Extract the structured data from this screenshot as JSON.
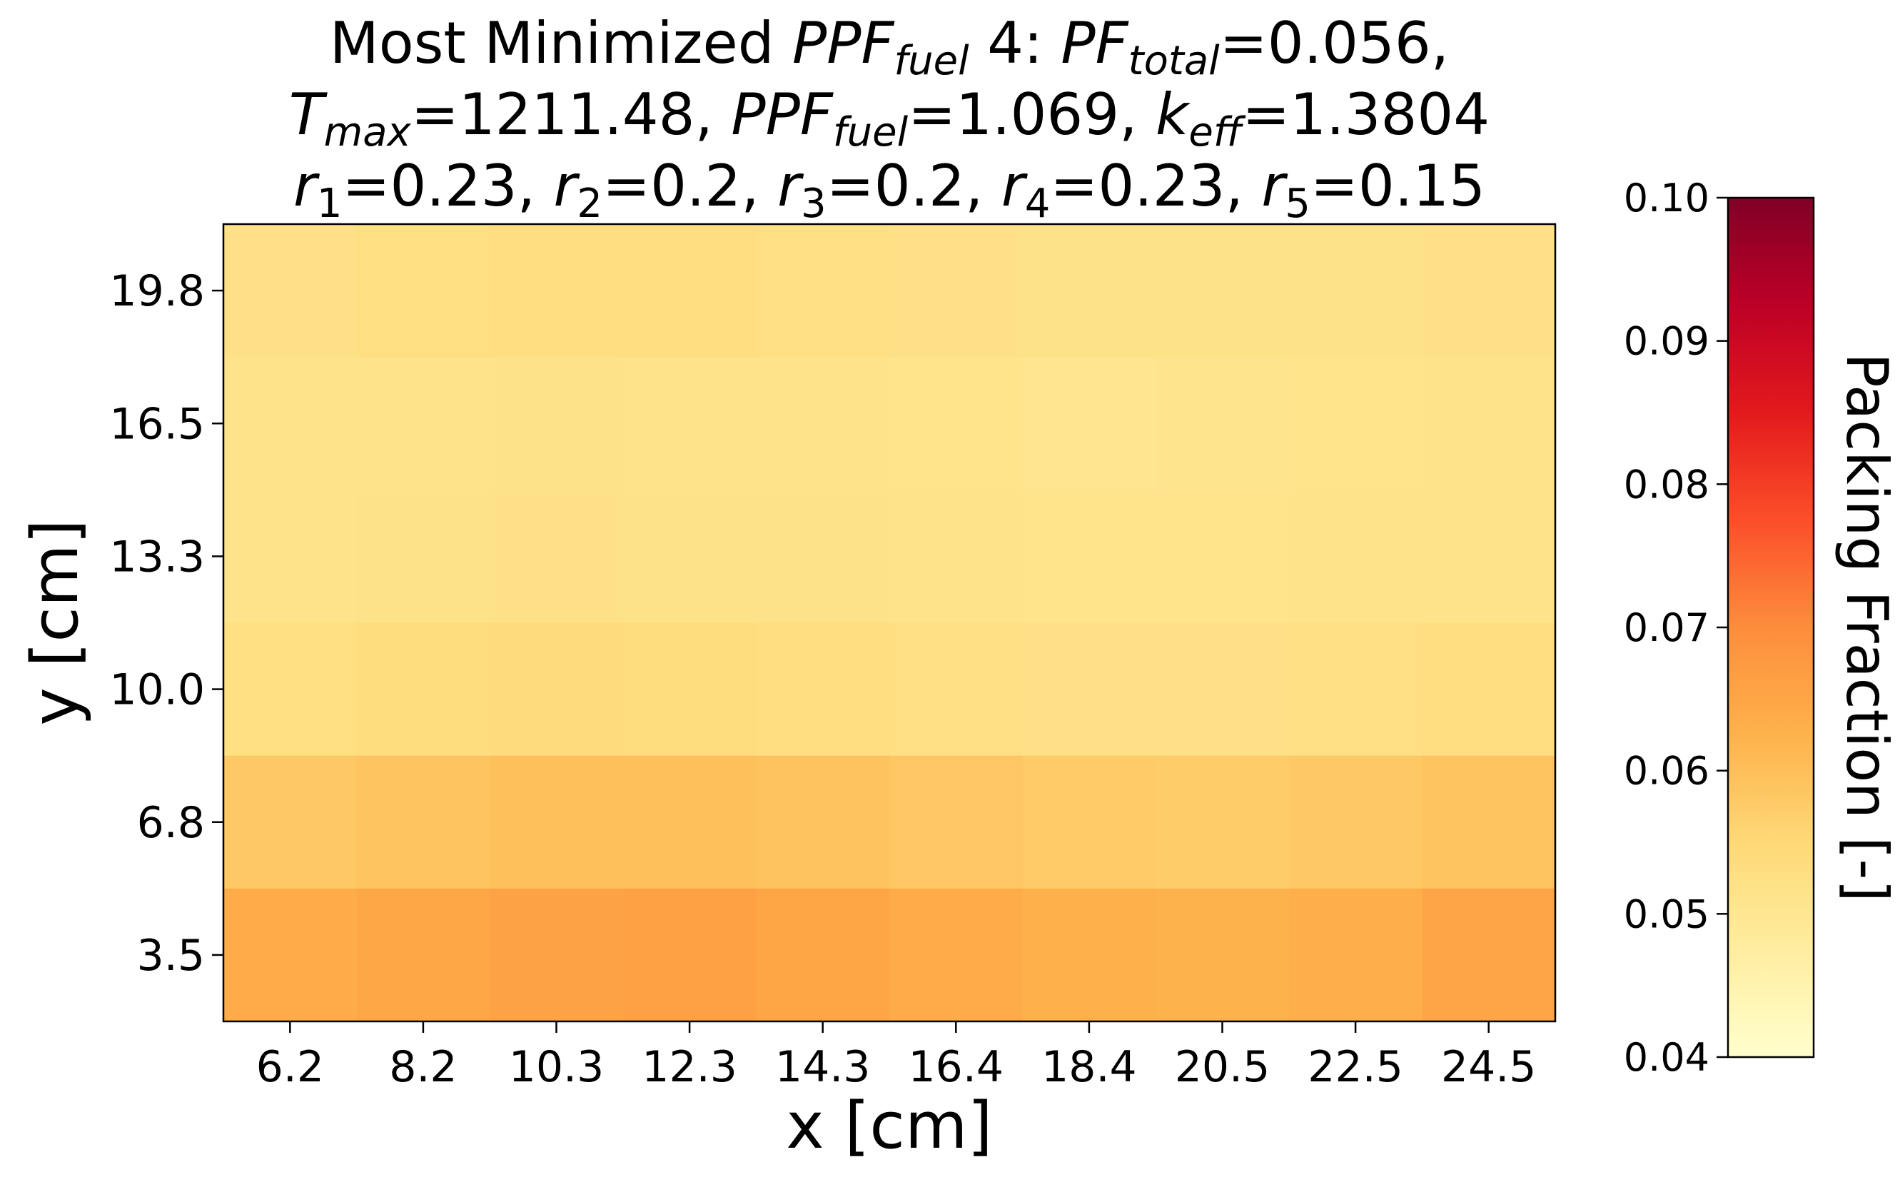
{
  "chart_data": {
    "type": "heatmap",
    "title_lines": [
      [
        {
          "t": "Most Minimized "
        },
        {
          "t": "PPF",
          "style": "italic"
        },
        {
          "t": "fuel",
          "style": "italic",
          "sub": true
        },
        {
          "t": " 4: "
        },
        {
          "t": "PF",
          "style": "italic"
        },
        {
          "t": "total",
          "style": "italic",
          "sub": true
        },
        {
          "t": "=0.056,"
        }
      ],
      [
        {
          "t": "T",
          "style": "italic"
        },
        {
          "t": "max",
          "style": "italic",
          "sub": true
        },
        {
          "t": "=1211.48, "
        },
        {
          "t": "PPF",
          "style": "italic"
        },
        {
          "t": "fuel",
          "style": "italic",
          "sub": true
        },
        {
          "t": "=1.069, "
        },
        {
          "t": "k",
          "style": "italic"
        },
        {
          "t": "eff",
          "style": "italic",
          "sub": true
        },
        {
          "t": "=1.3804"
        }
      ],
      [
        {
          "t": "r",
          "style": "italic"
        },
        {
          "t": "1",
          "sub": true
        },
        {
          "t": "=0.23, "
        },
        {
          "t": "r",
          "style": "italic"
        },
        {
          "t": "2",
          "sub": true
        },
        {
          "t": "=0.2, "
        },
        {
          "t": "r",
          "style": "italic"
        },
        {
          "t": "3",
          "sub": true
        },
        {
          "t": "=0.2, "
        },
        {
          "t": "r",
          "style": "italic"
        },
        {
          "t": "4",
          "sub": true
        },
        {
          "t": "=0.23, "
        },
        {
          "t": "r",
          "style": "italic"
        },
        {
          "t": "5",
          "sub": true
        },
        {
          "t": "=0.15"
        }
      ]
    ],
    "xlabel": "x [cm]",
    "ylabel": "y [cm]",
    "x_ticks": [
      "6.2",
      "8.2",
      "10.3",
      "12.3",
      "14.3",
      "16.4",
      "18.4",
      "20.5",
      "22.5",
      "24.5"
    ],
    "y_ticks": [
      "19.8",
      "16.5",
      "13.3",
      "10.0",
      "6.8",
      "3.5"
    ],
    "colorbar": {
      "label": "Packing Fraction [-]",
      "min": 0.04,
      "max": 0.1,
      "ticks": [
        "0.10",
        "0.09",
        "0.08",
        "0.07",
        "0.06",
        "0.05",
        "0.04"
      ],
      "colormap": "YlOrRd",
      "colors": [
        "#ffffcc",
        "#ffeda0",
        "#fed976",
        "#feb24c",
        "#fd8d3c",
        "#fc4e2a",
        "#e31a1c",
        "#bd0026",
        "#800026"
      ]
    },
    "values": [
      [
        0.052,
        0.0528,
        0.0532,
        0.053,
        0.0526,
        0.0522,
        0.0518,
        0.0518,
        0.0518,
        0.052
      ],
      [
        0.0512,
        0.0514,
        0.0516,
        0.0514,
        0.0512,
        0.051,
        0.0506,
        0.0508,
        0.051,
        0.0512
      ],
      [
        0.0512,
        0.0518,
        0.052,
        0.0518,
        0.0516,
        0.0512,
        0.051,
        0.051,
        0.0512,
        0.0514
      ],
      [
        0.0528,
        0.0534,
        0.0538,
        0.0536,
        0.0532,
        0.0526,
        0.0522,
        0.0522,
        0.0526,
        0.053
      ],
      [
        0.0582,
        0.059,
        0.0598,
        0.0598,
        0.0592,
        0.0584,
        0.0576,
        0.0574,
        0.058,
        0.059
      ],
      [
        0.064,
        0.0648,
        0.0656,
        0.0662,
        0.0652,
        0.064,
        0.0628,
        0.0626,
        0.0634,
        0.065
      ]
    ]
  }
}
